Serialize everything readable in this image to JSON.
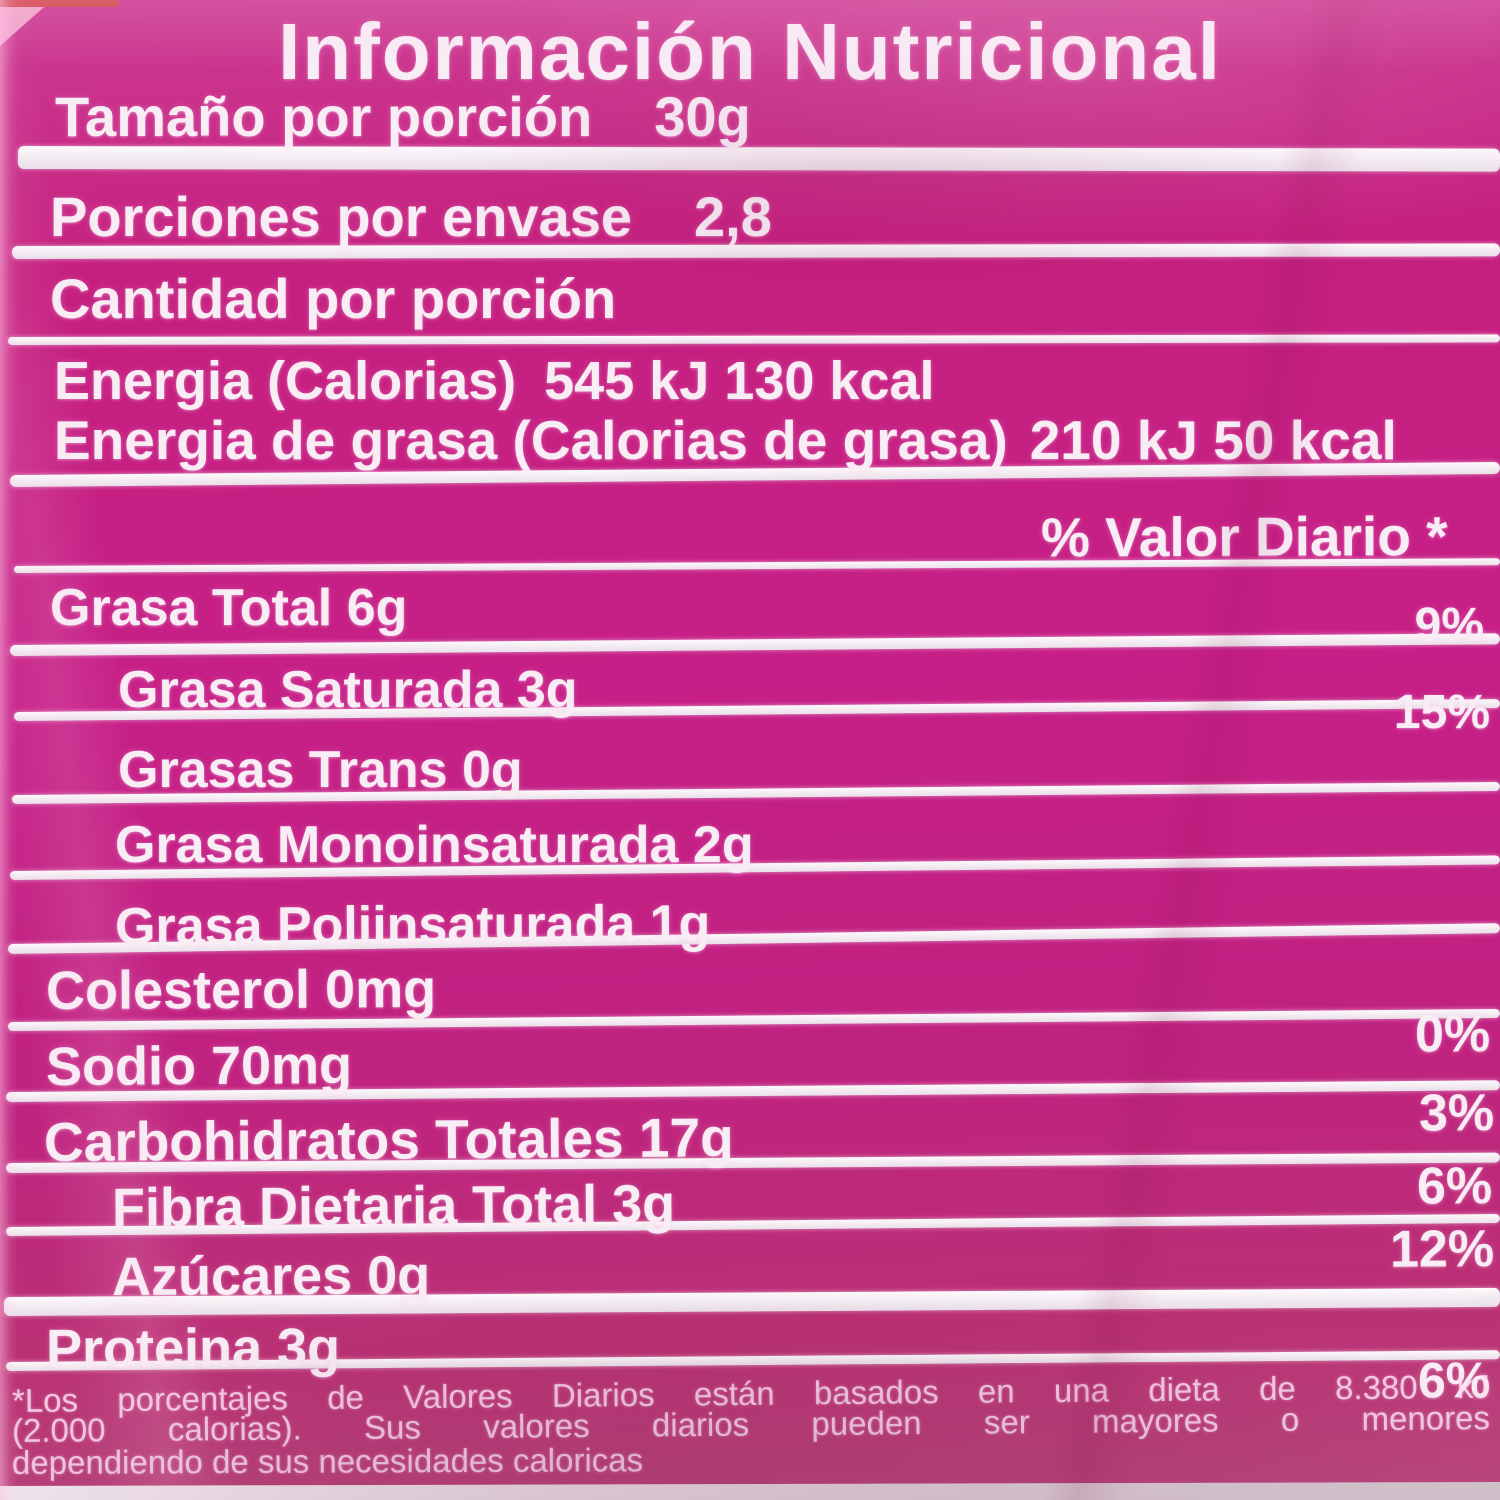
{
  "label": {
    "title": "Información Nutricional",
    "serving_size": {
      "label": "Tamaño por porción",
      "value": "30g"
    },
    "servings_per_container": {
      "label": "Porciones por envase",
      "value": "2,8"
    },
    "amount_per_serving": "Cantidad por porción",
    "energy": {
      "label": "Energia (Calorias)",
      "value": "545 kJ  130 kcal"
    },
    "energy_from_fat": {
      "label": "Energia de grasa (Calorias de grasa)",
      "value": "210 kJ 50 kcal"
    },
    "daily_value_header": "% Valor Diario *",
    "nutrients": [
      {
        "name": "Grasa Total 6g",
        "daily_value": "9%"
      },
      {
        "name": "Grasa Saturada 3g",
        "daily_value": "15%"
      },
      {
        "name": "Grasas Trans 0g",
        "daily_value": ""
      },
      {
        "name": "Grasa Monoinsaturada 2g",
        "daily_value": ""
      },
      {
        "name": "Grasa Poliinsaturada 1g",
        "daily_value": ""
      },
      {
        "name": "Colesterol 0mg",
        "daily_value": "0%"
      },
      {
        "name": "Sodio 70mg",
        "daily_value": "3%"
      },
      {
        "name": "Carbohidratos Totales 17g",
        "daily_value": "6%"
      },
      {
        "name": "Fibra Dietaria Total 3g",
        "daily_value": "12%"
      },
      {
        "name": "Azúcares 0g",
        "daily_value": ""
      },
      {
        "name": "Proteina 3g",
        "daily_value": "6%"
      }
    ],
    "footnote": {
      "line1": "*Los porcentajes de Valores Diarios están basados en una dieta de 8.380 kJ",
      "line2": "(2.000 calorias). Sus valores diarios pueden ser mayores o menores",
      "line3": "dependiendo de sus necesidades caloricas"
    },
    "colors": {
      "background_magenta": "#c52384",
      "print_white": "#f8ecf5"
    }
  }
}
